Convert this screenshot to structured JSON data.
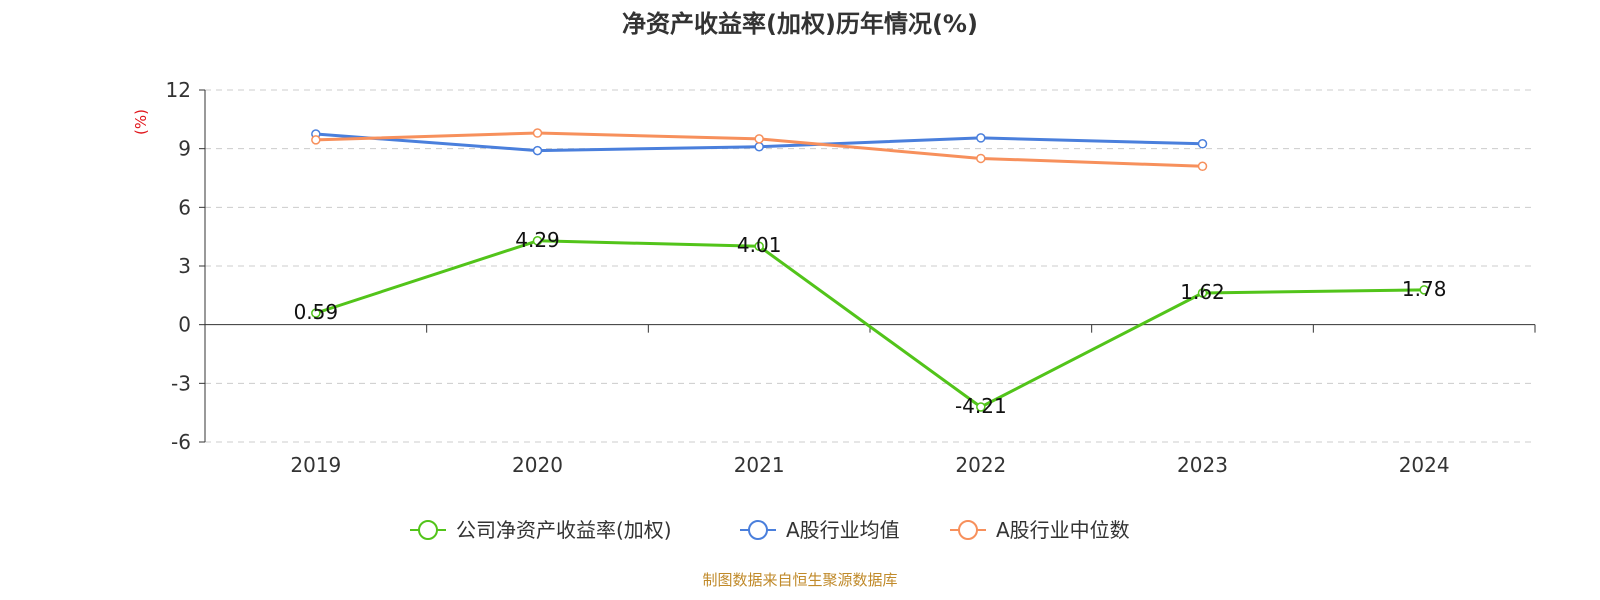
{
  "chart_data": {
    "type": "line",
    "title": "净资产收益率(加权)历年情况(%)",
    "ylabel": "(%)",
    "categories": [
      "2019",
      "2020",
      "2021",
      "2022",
      "2023",
      "2024"
    ],
    "ylim": [
      -6,
      12
    ],
    "yticks": [
      12,
      9,
      6,
      3,
      0,
      -3,
      -6
    ],
    "grid": true,
    "legend_position": "bottom",
    "series": [
      {
        "name": "公司净资产收益率(加权)",
        "color": "#52c41a",
        "values": [
          0.59,
          4.29,
          4.01,
          -4.21,
          1.62,
          1.78
        ],
        "labels": [
          "0.59",
          "4.29",
          "4.01",
          "-4.21",
          "1.62",
          "1.78"
        ]
      },
      {
        "name": "A股行业均值",
        "color": "#4a7fdc",
        "values": [
          9.75,
          8.9,
          9.1,
          9.55,
          9.25,
          null
        ]
      },
      {
        "name": "A股行业中位数",
        "color": "#f7905c",
        "values": [
          9.45,
          9.8,
          9.5,
          8.5,
          8.1,
          null
        ]
      }
    ]
  },
  "source": "制图数据来自恒生聚源数据库"
}
